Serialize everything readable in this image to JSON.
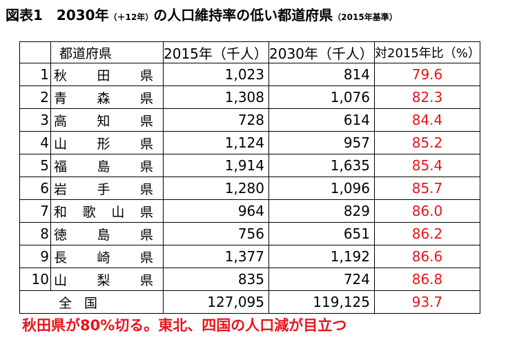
{
  "title": {
    "main": "図表1　2030年",
    "paren": "（＋12年）",
    "rest": "の人口維持率の低い都道府県",
    "suffix": "（2015年基準）"
  },
  "table": {
    "headers": {
      "rank": "",
      "name": "都道府県",
      "y2015": "2015年（千人）",
      "y2030": "2030年（千人）",
      "ratio": "対2015年比（%）"
    },
    "rows": [
      {
        "rank": "1",
        "name": [
          "秋",
          "田",
          "県"
        ],
        "y2015": "1,023",
        "y2030": "814",
        "ratio": "79.6"
      },
      {
        "rank": "2",
        "name": [
          "青",
          "森",
          "県"
        ],
        "y2015": "1,308",
        "y2030": "1,076",
        "ratio": "82.3"
      },
      {
        "rank": "3",
        "name": [
          "高",
          "知",
          "県"
        ],
        "y2015": "728",
        "y2030": "614",
        "ratio": "84.4"
      },
      {
        "rank": "4",
        "name": [
          "山",
          "形",
          "県"
        ],
        "y2015": "1,124",
        "y2030": "957",
        "ratio": "85.2"
      },
      {
        "rank": "5",
        "name": [
          "福",
          "島",
          "県"
        ],
        "y2015": "1,914",
        "y2030": "1,635",
        "ratio": "85.4"
      },
      {
        "rank": "6",
        "name": [
          "岩",
          "手",
          "県"
        ],
        "y2015": "1,280",
        "y2030": "1,096",
        "ratio": "85.7"
      },
      {
        "rank": "7",
        "name": [
          "和",
          "歌",
          "山",
          "県"
        ],
        "y2015": "964",
        "y2030": "829",
        "ratio": "86.0"
      },
      {
        "rank": "8",
        "name": [
          "徳",
          "島",
          "県"
        ],
        "y2015": "756",
        "y2030": "651",
        "ratio": "86.2"
      },
      {
        "rank": "9",
        "name": [
          "長",
          "崎",
          "県"
        ],
        "y2015": "1,377",
        "y2030": "1,192",
        "ratio": "86.6"
      },
      {
        "rank": "10",
        "name": [
          "山",
          "梨",
          "県"
        ],
        "y2015": "835",
        "y2030": "724",
        "ratio": "86.8"
      }
    ],
    "total": {
      "label": "全国",
      "y2015": "127,095",
      "y2030": "119,125",
      "ratio": "93.7"
    }
  },
  "caption": "秋田県が80%切る。東北、四国の人口減が目立つ",
  "colors": {
    "accent_red": "#e8141b",
    "text": "#000000"
  }
}
